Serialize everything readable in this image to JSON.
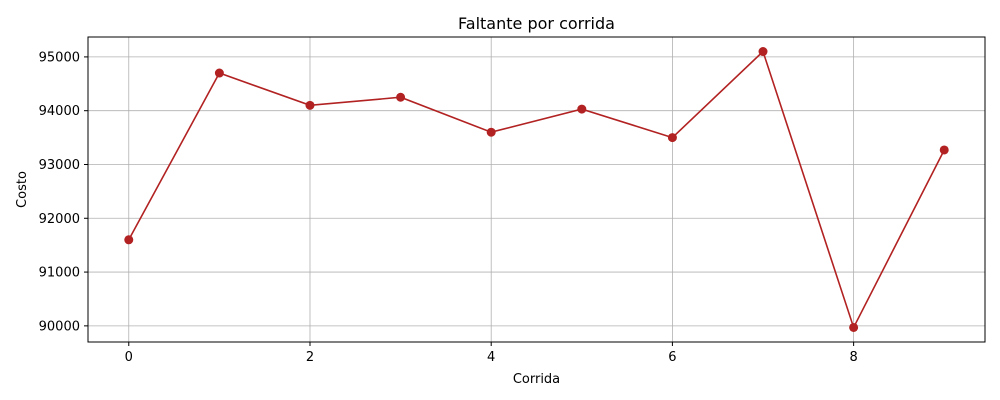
{
  "chart_data": {
    "type": "line",
    "title": "Faltante por corrida",
    "xlabel": "Corrida",
    "ylabel": "Costo",
    "x": [
      0,
      1,
      2,
      3,
      4,
      5,
      6,
      7,
      8,
      9
    ],
    "series": [
      {
        "values": [
          91600,
          94700,
          94100,
          94250,
          93600,
          94030,
          93500,
          95100,
          89970,
          93270
        ]
      }
    ],
    "xlim": [
      -0.45,
      9.45
    ],
    "ylim": [
      89700,
      95370
    ],
    "xticks": [
      0,
      2,
      4,
      6,
      8
    ],
    "yticks": [
      90000,
      91000,
      92000,
      93000,
      94000,
      95000
    ],
    "grid": true,
    "line_color": "#b22222",
    "marker": "circle"
  }
}
